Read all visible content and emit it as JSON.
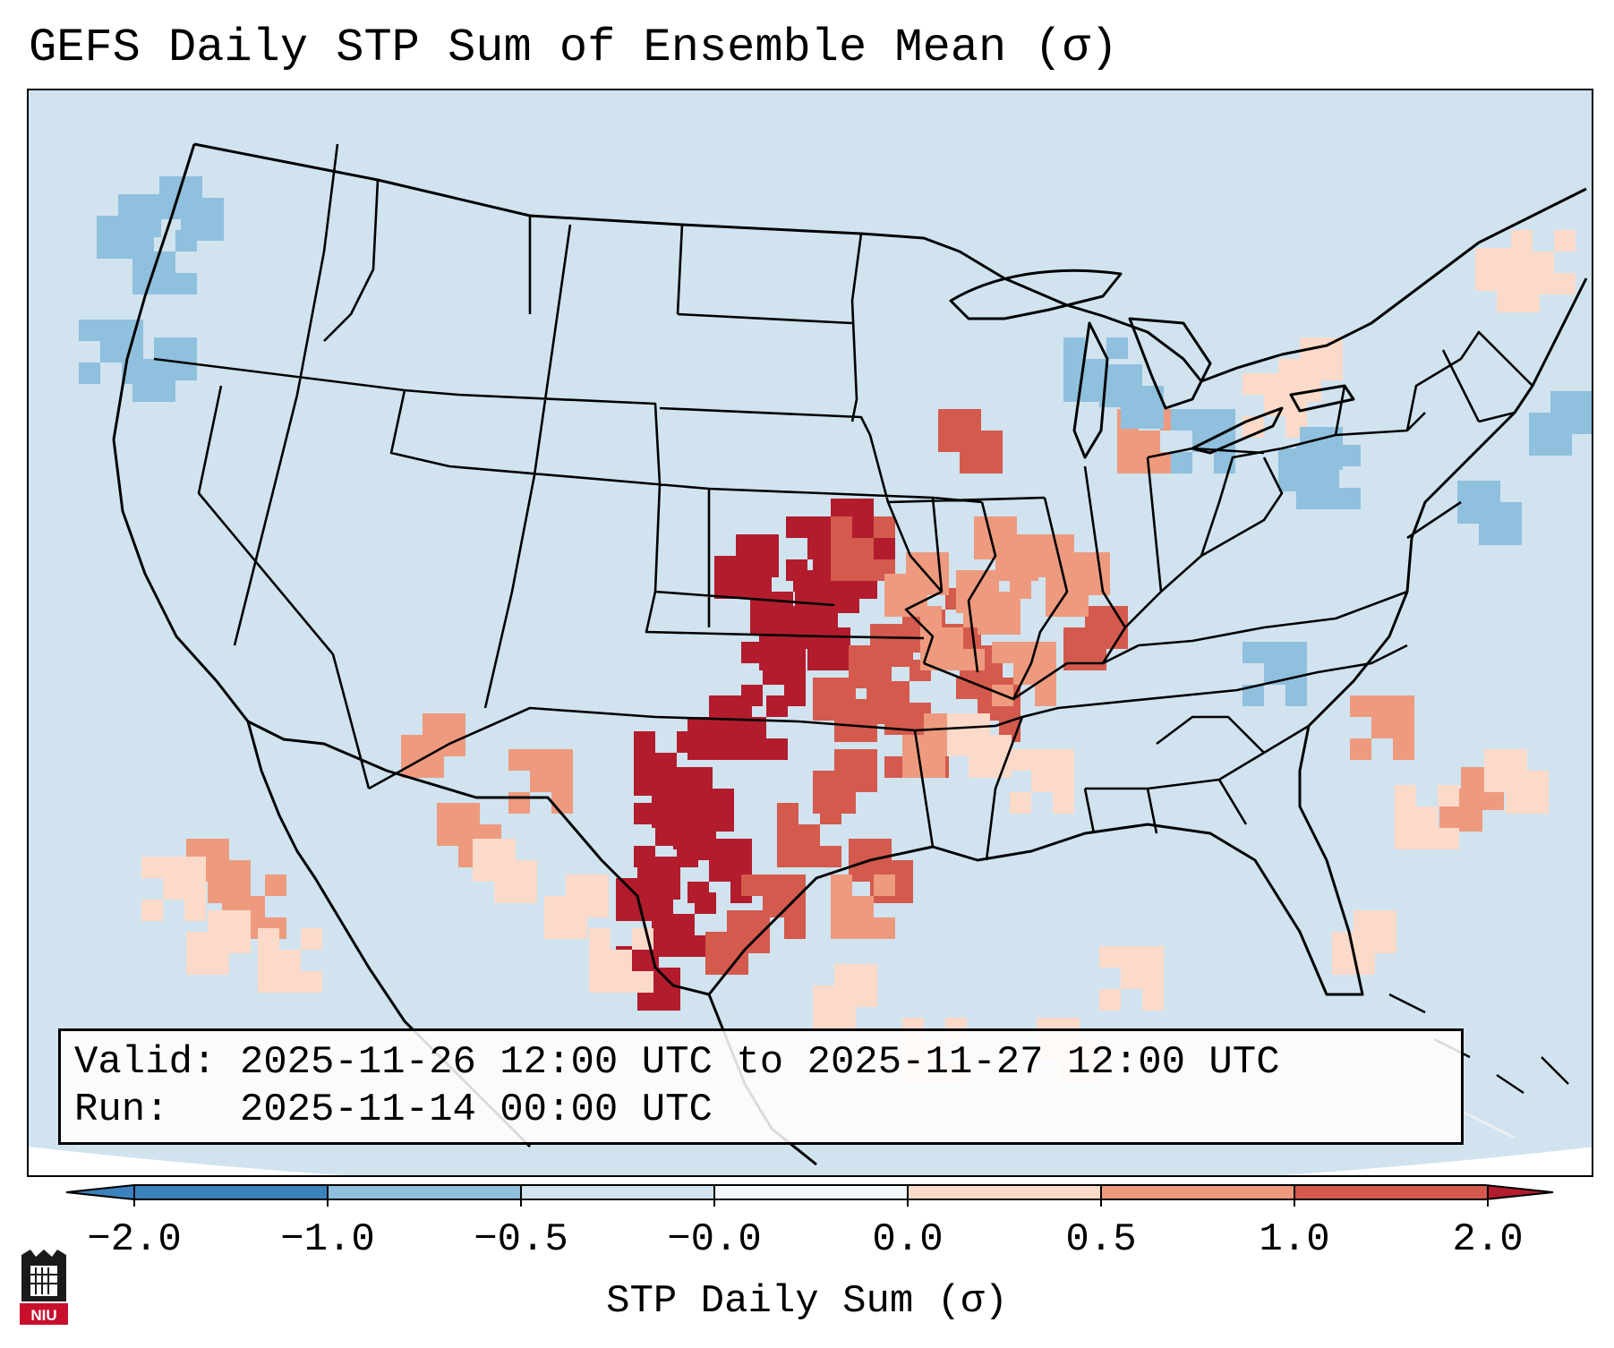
{
  "title": "GEFS Daily STP Sum of Ensemble Mean (σ)",
  "info": {
    "valid_line": "Valid: 2025-11-26 12:00 UTC to 2025-11-27 12:00 UTC",
    "run_line": "Run:   2025-11-14 00:00 UTC"
  },
  "colorbar": {
    "label": "STP Daily Sum (σ)",
    "ticks": [
      "−2.0",
      "−1.0",
      "−0.5",
      "−0.0",
      "0.0",
      "0.5",
      "1.0",
      "2.0"
    ],
    "colors": [
      "#3b82bd",
      "#8fc0de",
      "#d0e3ef",
      "#f5f8fb",
      "#fcdac9",
      "#ee9a7e",
      "#d45a4d",
      "#b21c2d"
    ]
  },
  "map": {
    "ocean_color": "#d0e3ef",
    "land_color": "#d0e3ef",
    "border_color": "#000000"
  },
  "logo": {
    "name": "niu-logo",
    "text": "NIU"
  }
}
